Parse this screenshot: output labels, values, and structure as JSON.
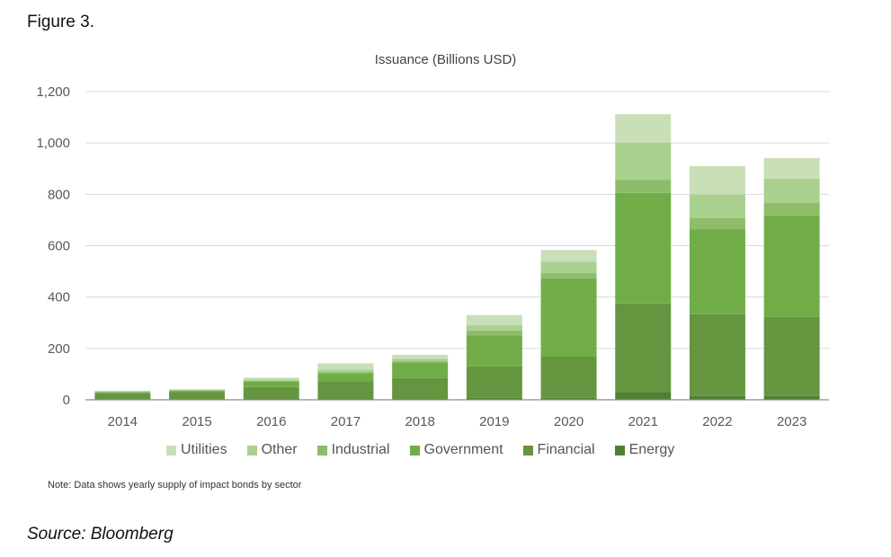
{
  "figure_label": "Figure 3.",
  "note": "Note: Data shows yearly supply of impact bonds by sector",
  "source": "Source: Bloomberg",
  "chart_data": {
    "type": "bar",
    "stacked": true,
    "title": "Issuance (Billions USD)",
    "xlabel": "",
    "ylabel": "",
    "ylim": [
      0,
      1200
    ],
    "yticks": [
      0,
      200,
      400,
      600,
      800,
      1000,
      1200
    ],
    "ytick_labels": [
      "0",
      "200",
      "400",
      "600",
      "800",
      "1,000",
      "1,200"
    ],
    "grid": true,
    "legend_position": "bottom",
    "categories": [
      "2014",
      "2015",
      "2016",
      "2017",
      "2018",
      "2019",
      "2020",
      "2021",
      "2022",
      "2023"
    ],
    "series": [
      {
        "name": "Energy",
        "color": "#4f7f34",
        "values": [
          3,
          3,
          5,
          5,
          5,
          8,
          8,
          30,
          15,
          15
        ]
      },
      {
        "name": "Financial",
        "color": "#65963f",
        "values": [
          22,
          28,
          45,
          68,
          80,
          122,
          160,
          345,
          318,
          308
        ]
      },
      {
        "name": "Government",
        "color": "#70ad47",
        "values": [
          5,
          4,
          20,
          30,
          60,
          120,
          305,
          430,
          330,
          395
        ]
      },
      {
        "name": "Industrial",
        "color": "#8dbd6a",
        "values": [
          1,
          1,
          4,
          5,
          5,
          20,
          20,
          52,
          45,
          48
        ]
      },
      {
        "name": "Other",
        "color": "#a9d08e",
        "values": [
          2,
          3,
          5,
          10,
          10,
          20,
          45,
          145,
          92,
          95
        ]
      },
      {
        "name": "Utilities",
        "color": "#c8dfb8",
        "values": [
          2,
          3,
          7,
          24,
          15,
          40,
          45,
          110,
          110,
          80
        ]
      }
    ],
    "legend_order": [
      "Utilities",
      "Other",
      "Industrial",
      "Government",
      "Financial",
      "Energy"
    ]
  }
}
